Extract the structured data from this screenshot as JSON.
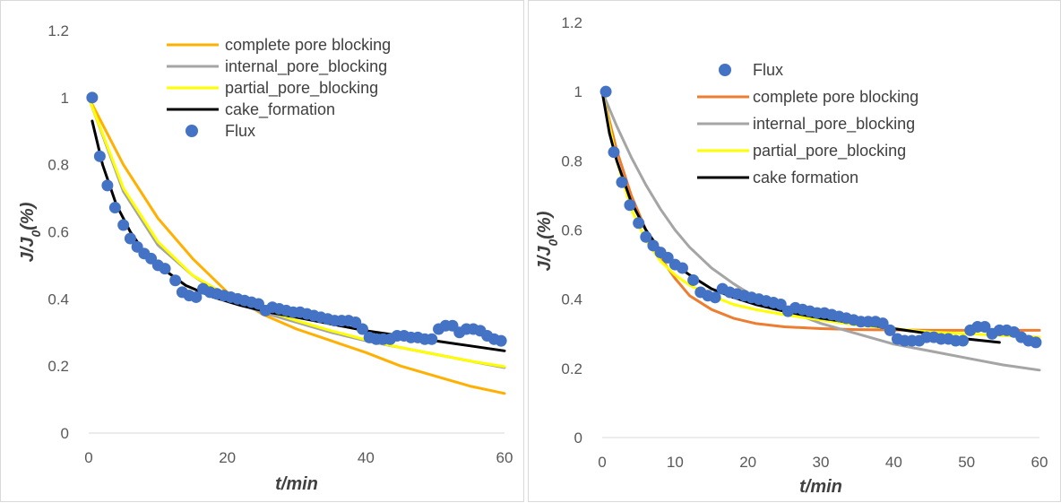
{
  "chart_data": [
    {
      "type": "scatter",
      "xlabel": "t/min",
      "ylabel_main": "J/J",
      "ylabel_sub": "0",
      "ylabel_tail": "(%)",
      "xlim": [
        0,
        60
      ],
      "ylim": [
        0,
        1.2
      ],
      "x_ticks": [
        "0",
        "20",
        "40",
        "60"
      ],
      "y_ticks": [
        "0",
        "0.2",
        "0.4",
        "0.6",
        "0.8",
        "1",
        "1.2"
      ],
      "grid": false,
      "legend_position": "top-right",
      "series": [
        {
          "name": "complete pore blocking",
          "kind": "line",
          "color": "#ffb000",
          "x": [
            0,
            5,
            10,
            15,
            20,
            25,
            30,
            35,
            40,
            45,
            50,
            55,
            60
          ],
          "y": [
            1.0,
            0.8,
            0.64,
            0.52,
            0.42,
            0.355,
            0.31,
            0.275,
            0.24,
            0.2,
            0.17,
            0.14,
            0.118
          ]
        },
        {
          "name": "internal_pore_blocking",
          "kind": "line",
          "color": "#a5a5a5",
          "x": [
            0,
            5,
            10,
            15,
            20,
            25,
            30,
            35,
            40,
            45,
            50,
            55,
            60
          ],
          "y": [
            1.0,
            0.72,
            0.56,
            0.47,
            0.4,
            0.36,
            0.33,
            0.3,
            0.275,
            0.255,
            0.235,
            0.215,
            0.195
          ]
        },
        {
          "name": "partial_pore_blocking",
          "kind": "line",
          "color": "#ffff00",
          "x": [
            0,
            5,
            10,
            15,
            20,
            25,
            30,
            35,
            40,
            45,
            50,
            55,
            60
          ],
          "y": [
            1.0,
            0.73,
            0.57,
            0.47,
            0.41,
            0.37,
            0.335,
            0.305,
            0.278,
            0.255,
            0.235,
            0.215,
            0.198
          ]
        },
        {
          "name": "cake_formation",
          "kind": "line",
          "color": "#000000",
          "x": [
            0.5,
            2,
            4,
            6,
            8,
            10,
            14,
            18,
            22,
            26,
            30,
            35,
            40,
            45,
            50,
            55,
            60
          ],
          "y": [
            0.93,
            0.8,
            0.68,
            0.6,
            0.54,
            0.5,
            0.44,
            0.405,
            0.38,
            0.36,
            0.345,
            0.325,
            0.305,
            0.29,
            0.275,
            0.26,
            0.245
          ]
        },
        {
          "name": "Flux",
          "kind": "points",
          "color": "#4472c4",
          "x": [
            0.5,
            1.6,
            2.7,
            3.8,
            5,
            6,
            7,
            8,
            9,
            10,
            11,
            12.5,
            13.5,
            14.5,
            15.5,
            16.5,
            17.5,
            18.5,
            19.5,
            20.5,
            21.5,
            22.5,
            23.5,
            24.5,
            25.5,
            26.5,
            27.5,
            28.5,
            29.5,
            30.5,
            31.5,
            32.5,
            33.5,
            34.5,
            35.5,
            36.5,
            37.5,
            38.5,
            39.5,
            40.5,
            41.5,
            42.5,
            43.5,
            44.5,
            45.5,
            46.5,
            47.5,
            48.5,
            49.5,
            50.5,
            51.5,
            52.5,
            53.5,
            54.5,
            55.5,
            56.5,
            57.5,
            58.5,
            59.5
          ],
          "y": [
            1.0,
            0.825,
            0.738,
            0.672,
            0.62,
            0.58,
            0.555,
            0.535,
            0.52,
            0.5,
            0.49,
            0.455,
            0.42,
            0.41,
            0.405,
            0.43,
            0.42,
            0.415,
            0.41,
            0.405,
            0.4,
            0.395,
            0.39,
            0.385,
            0.365,
            0.375,
            0.37,
            0.365,
            0.36,
            0.36,
            0.355,
            0.35,
            0.345,
            0.34,
            0.335,
            0.335,
            0.335,
            0.33,
            0.31,
            0.285,
            0.28,
            0.28,
            0.28,
            0.29,
            0.29,
            0.285,
            0.285,
            0.28,
            0.28,
            0.31,
            0.32,
            0.32,
            0.3,
            0.31,
            0.31,
            0.305,
            0.29,
            0.28,
            0.275
          ]
        }
      ]
    },
    {
      "type": "scatter",
      "xlabel": "t/min",
      "ylabel_main": "J/J",
      "ylabel_sub": "0",
      "ylabel_tail": "(%)",
      "xlim": [
        0,
        60
      ],
      "ylim": [
        0,
        1.2
      ],
      "x_ticks": [
        "0",
        "10",
        "20",
        "30",
        "40",
        "50",
        "60"
      ],
      "y_ticks": [
        "0",
        "0.2",
        "0.4",
        "0.6",
        "0.8",
        "1",
        "1.2"
      ],
      "grid": false,
      "legend_position": "top-right",
      "series": [
        {
          "name": "Flux",
          "kind": "points",
          "color": "#4472c4",
          "x": [
            0.5,
            1.6,
            2.7,
            3.8,
            5,
            6,
            7,
            8,
            9,
            10,
            11,
            12.5,
            13.5,
            14.5,
            15.5,
            16.5,
            17.5,
            18.5,
            19.5,
            20.5,
            21.5,
            22.5,
            23.5,
            24.5,
            25.5,
            26.5,
            27.5,
            28.5,
            29.5,
            30.5,
            31.5,
            32.5,
            33.5,
            34.5,
            35.5,
            36.5,
            37.5,
            38.5,
            39.5,
            40.5,
            41.5,
            42.5,
            43.5,
            44.5,
            45.5,
            46.5,
            47.5,
            48.5,
            49.5,
            50.5,
            51.5,
            52.5,
            53.5,
            54.5,
            55.5,
            56.5,
            57.5,
            58.5,
            59.5
          ],
          "y": [
            1.0,
            0.825,
            0.738,
            0.672,
            0.62,
            0.58,
            0.555,
            0.535,
            0.52,
            0.5,
            0.49,
            0.455,
            0.42,
            0.41,
            0.405,
            0.43,
            0.42,
            0.415,
            0.41,
            0.405,
            0.4,
            0.395,
            0.39,
            0.385,
            0.365,
            0.375,
            0.37,
            0.365,
            0.36,
            0.36,
            0.355,
            0.35,
            0.345,
            0.34,
            0.335,
            0.335,
            0.335,
            0.33,
            0.31,
            0.285,
            0.28,
            0.28,
            0.28,
            0.29,
            0.29,
            0.285,
            0.285,
            0.28,
            0.28,
            0.31,
            0.32,
            0.32,
            0.3,
            0.31,
            0.31,
            0.305,
            0.29,
            0.28,
            0.275
          ]
        },
        {
          "name": "complete pore blocking",
          "kind": "line",
          "color": "#ed7d31",
          "x": [
            0,
            2,
            4,
            6,
            8,
            10,
            12,
            15,
            18,
            21,
            25,
            30,
            35,
            40,
            45,
            50,
            55,
            60
          ],
          "y": [
            1.0,
            0.83,
            0.7,
            0.6,
            0.52,
            0.46,
            0.41,
            0.37,
            0.345,
            0.33,
            0.32,
            0.315,
            0.312,
            0.311,
            0.31,
            0.31,
            0.31,
            0.31
          ]
        },
        {
          "name": "internal_pore_blocking",
          "kind": "line",
          "color": "#a5a5a5",
          "x": [
            0,
            2,
            4,
            6,
            8,
            10,
            12,
            15,
            18,
            21,
            25,
            30,
            35,
            40,
            45,
            50,
            55,
            60
          ],
          "y": [
            1.0,
            0.9,
            0.81,
            0.73,
            0.66,
            0.6,
            0.55,
            0.49,
            0.445,
            0.405,
            0.37,
            0.33,
            0.3,
            0.27,
            0.25,
            0.23,
            0.21,
            0.195
          ]
        },
        {
          "name": "partial_pore_blocking",
          "kind": "line",
          "color": "#ffff00",
          "x": [
            0,
            2,
            4,
            6,
            8,
            10,
            12,
            15,
            18,
            21,
            25,
            30,
            35,
            40,
            45,
            50,
            55,
            60
          ],
          "y": [
            1.0,
            0.8,
            0.66,
            0.57,
            0.51,
            0.47,
            0.44,
            0.41,
            0.385,
            0.37,
            0.355,
            0.34,
            0.325,
            0.315,
            0.305,
            0.3,
            0.295,
            0.29
          ]
        },
        {
          "name": "cake formation",
          "kind": "line",
          "color": "#000000",
          "x": [
            0,
            1,
            2,
            4,
            6,
            8,
            10,
            12,
            15,
            18,
            21,
            25,
            30,
            35,
            40,
            45,
            50,
            54.5
          ],
          "y": [
            1.0,
            0.88,
            0.8,
            0.68,
            0.6,
            0.54,
            0.5,
            0.47,
            0.43,
            0.405,
            0.385,
            0.365,
            0.345,
            0.33,
            0.315,
            0.3,
            0.285,
            0.275
          ]
        }
      ]
    }
  ]
}
